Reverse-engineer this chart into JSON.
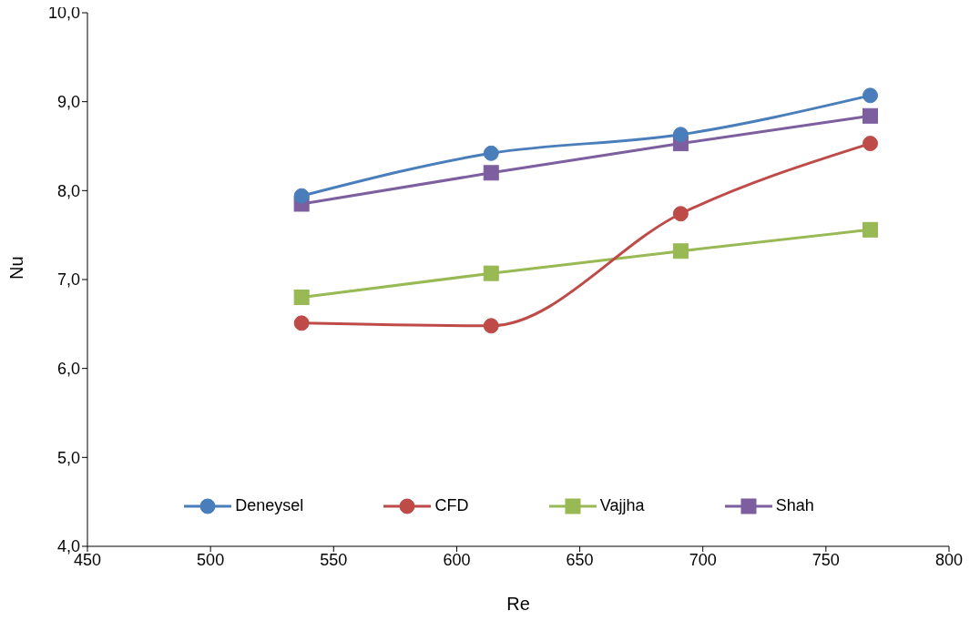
{
  "chart_data": {
    "type": "line",
    "xlabel": "Re",
    "ylabel": "Nu",
    "x": [
      537,
      614,
      691,
      768
    ],
    "series": [
      {
        "name": "Deneysel",
        "color": "#4a7ebb",
        "marker": "circle",
        "values": [
          7.94,
          8.42,
          8.63,
          9.07
        ]
      },
      {
        "name": "CFD",
        "color": "#be4b48",
        "marker": "circle",
        "values": [
          6.51,
          6.48,
          7.74,
          8.53
        ]
      },
      {
        "name": "Vajjha",
        "color": "#98b954",
        "marker": "square",
        "values": [
          6.8,
          7.07,
          7.32,
          7.56
        ]
      },
      {
        "name": "Shah",
        "color": "#7d5fa0",
        "marker": "square",
        "values": [
          7.85,
          8.2,
          8.53,
          8.84
        ]
      }
    ],
    "xlim": [
      450,
      800
    ],
    "xticks": [
      450,
      500,
      550,
      600,
      650,
      700,
      750,
      800
    ],
    "ylim": [
      4,
      10
    ],
    "yticks": [
      {
        "value": 4,
        "label": "4,0"
      },
      {
        "value": 5,
        "label": "5,0"
      },
      {
        "value": 6,
        "label": "6,0"
      },
      {
        "value": 7,
        "label": "7,0"
      },
      {
        "value": 8,
        "label": "8,0"
      },
      {
        "value": 9,
        "label": "9,0"
      },
      {
        "value": 10,
        "label": "10,0"
      }
    ],
    "grid": false,
    "legend": "bottom",
    "line_style": "solid"
  }
}
